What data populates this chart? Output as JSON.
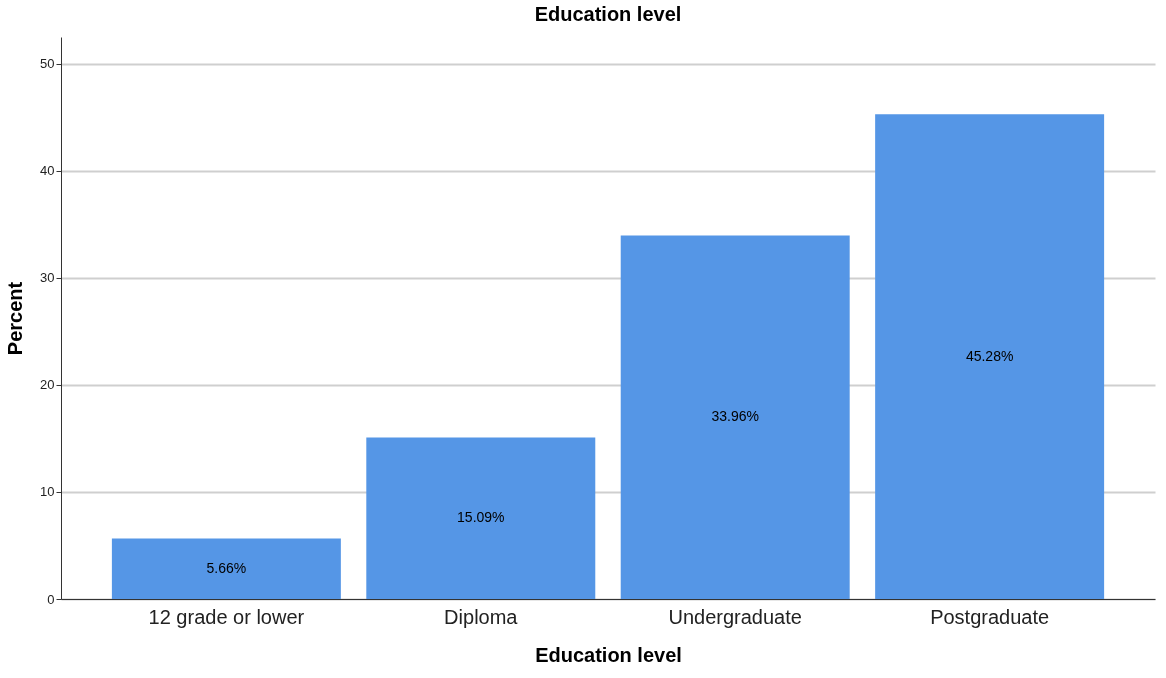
{
  "chart_data": {
    "type": "bar",
    "title": "Education level",
    "xlabel": "Education level",
    "ylabel": "Percent",
    "categories": [
      "12 grade or lower",
      "Diploma",
      "Undergraduate",
      "Postgraduate"
    ],
    "values": [
      5.66,
      15.09,
      33.96,
      45.28
    ],
    "value_labels": [
      "5.66%",
      "15.09%",
      "33.96%",
      "45.28%"
    ],
    "color": "#5596e6",
    "ylim": [
      0,
      52.5
    ],
    "yticks": [
      0,
      10,
      20,
      30,
      40,
      50
    ],
    "grid": "y"
  }
}
